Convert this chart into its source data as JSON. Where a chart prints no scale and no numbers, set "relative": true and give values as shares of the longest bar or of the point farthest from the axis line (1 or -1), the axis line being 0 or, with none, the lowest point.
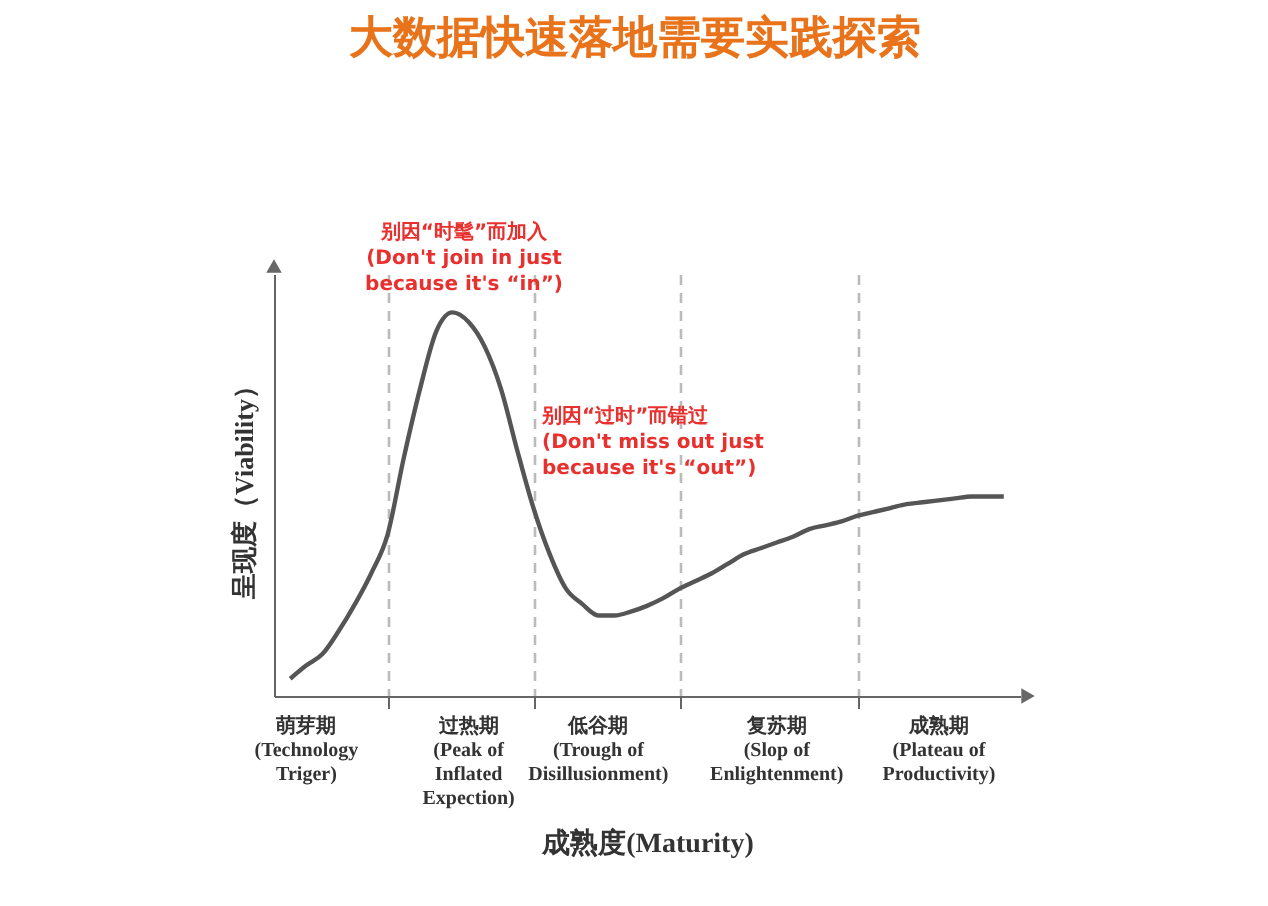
{
  "chart_data": {
    "type": "line",
    "title": "大数据快速落地需要实践探索",
    "xlabel": "成熟度(Maturity)",
    "ylabel": "呈现度（Viability）",
    "relative": true,
    "grid": "x",
    "marker": "none",
    "line_style": "solid",
    "categories": [
      null,
      "萌芽期\n(Technology\nTriger)",
      null,
      null,
      null,
      null,
      null,
      null,
      null,
      null,
      null,
      "过热期\n(Peak of\nInflated\nExpection)",
      null,
      null,
      null,
      null,
      null,
      null,
      null,
      "低谷期\n(Trough of\nDisillusionment)",
      null,
      null,
      null,
      null,
      null,
      null,
      null,
      null,
      null,
      null,
      "复苏期\n(Slop of\nEnlightenment)",
      null,
      null,
      null,
      null,
      null,
      null,
      null,
      null,
      null,
      "成熟期\n(Plateau of\nProductivity)",
      null,
      null,
      null,
      null
    ],
    "series": [
      {
        "color": "#555555",
        "values": [
          0.045,
          0.08,
          0.11,
          0.17,
          0.24,
          0.32,
          0.42,
          0.62,
          0.8,
          0.95,
          1.0,
          0.975,
          0.91,
          0.8,
          0.64,
          0.49,
          0.37,
          0.28,
          0.24,
          0.21,
          0.21,
          0.22,
          0.235,
          0.255,
          0.28,
          0.3,
          0.32,
          0.345,
          0.37,
          0.385,
          0.4,
          0.415,
          0.435,
          0.445,
          0.455,
          0.47,
          0.48,
          0.49,
          0.5,
          0.505,
          0.51,
          0.515,
          0.52,
          0.52,
          0.52
        ]
      }
    ],
    "annotations": [
      "别因“时髦”而加入\n(Don't join in just\nbecause it's “in”)",
      "别因“过时”而错过\n(Don't miss out just\nbecause it's “out”)"
    ]
  }
}
